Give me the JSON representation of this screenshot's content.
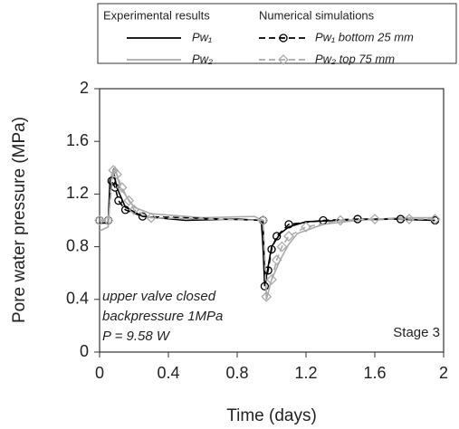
{
  "chart_data": {
    "type": "line",
    "xlabel": "Time (days)",
    "ylabel": "Pore water pressure (MPa)",
    "xlim": [
      0,
      2
    ],
    "xticks": [
      0,
      0.4,
      0.8,
      1.2,
      1.6,
      2
    ],
    "ylim": [
      0,
      2
    ],
    "yticks": [
      0,
      0.4,
      0.8,
      1.2,
      1.6,
      2
    ],
    "legend_headers": [
      "Experimental results",
      "Numerical simulations"
    ],
    "annotations": [
      "upper valve closed",
      "backpressure 1MPa",
      "P = 9.58 W",
      "Stage 3"
    ],
    "series": [
      {
        "name": "Pw₁",
        "color": "#000000",
        "style": "solid",
        "marker": "none",
        "x": [
          0,
          0.05,
          0.06,
          0.08,
          0.1,
          0.15,
          0.25,
          0.5,
          0.8,
          0.94,
          0.95,
          0.96,
          0.98,
          1.0,
          1.05,
          1.1,
          1.2,
          1.4,
          1.7,
          1.95
        ],
        "values": [
          0.98,
          0.98,
          1.3,
          1.38,
          1.25,
          1.1,
          1.03,
          1.0,
          1.01,
          1.0,
          0.8,
          0.5,
          0.65,
          0.8,
          0.9,
          0.95,
          0.99,
          1.0,
          1.01,
          1.0
        ]
      },
      {
        "name": "Pw₂",
        "color": "#aaaaaa",
        "style": "solid",
        "marker": "none",
        "x": [
          0,
          0.05,
          0.07,
          0.09,
          0.12,
          0.2,
          0.3,
          0.6,
          0.9,
          0.95,
          0.97,
          1.0,
          1.05,
          1.1,
          1.15,
          1.3,
          1.5,
          1.75,
          1.95
        ],
        "values": [
          0.92,
          0.95,
          1.35,
          1.4,
          1.25,
          1.1,
          1.05,
          1.02,
          1.03,
          1.0,
          0.4,
          0.55,
          0.7,
          0.82,
          0.9,
          0.97,
          1.0,
          1.02,
          1.02
        ]
      },
      {
        "name": "Pw₁ bottom 25 mm",
        "color": "#000000",
        "style": "dashed",
        "marker": "circle",
        "x": [
          0,
          0.05,
          0.07,
          0.09,
          0.11,
          0.15,
          0.25,
          0.95,
          0.96,
          0.98,
          1.0,
          1.03,
          1.1,
          1.3,
          1.5,
          1.75,
          1.95
        ],
        "values": [
          1.0,
          1.0,
          1.3,
          1.25,
          1.15,
          1.08,
          1.03,
          1.0,
          0.5,
          0.62,
          0.78,
          0.88,
          0.97,
          1.0,
          1.01,
          1.01,
          1.0
        ]
      },
      {
        "name": "Pw₂ top 75 mm",
        "color": "#aaaaaa",
        "style": "dashed",
        "marker": "diamond",
        "x": [
          0,
          0.05,
          0.08,
          0.1,
          0.13,
          0.17,
          0.2,
          0.3,
          0.95,
          0.97,
          1.0,
          1.03,
          1.06,
          1.1,
          1.2,
          1.4,
          1.6,
          1.8,
          1.95
        ],
        "values": [
          1.0,
          1.0,
          1.38,
          1.35,
          1.25,
          1.15,
          1.08,
          1.02,
          1.0,
          0.42,
          0.55,
          0.7,
          0.8,
          0.88,
          0.95,
          1.0,
          1.01,
          1.01,
          1.01
        ]
      }
    ]
  }
}
